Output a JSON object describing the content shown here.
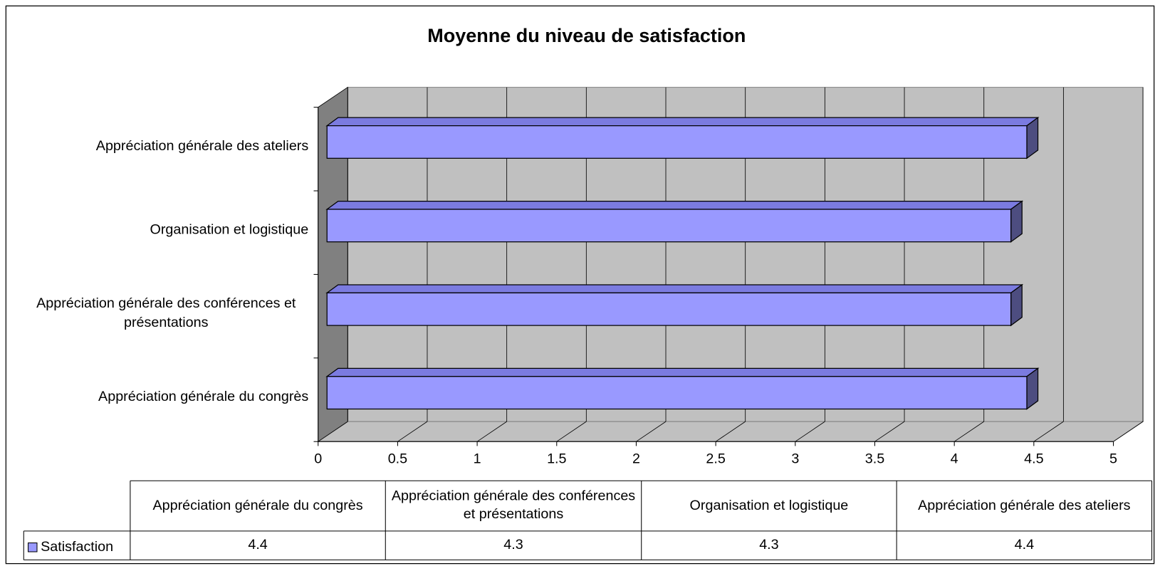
{
  "chart_data": {
    "type": "bar3d",
    "title": "Moyenne du niveau de satisfaction",
    "categories": [
      "Appréciation générale du congrès",
      "Appréciation générale des conférences et présentations",
      "Organisation et logistique",
      "Appréciation générale des ateliers"
    ],
    "series": [
      {
        "name": "Satisfaction",
        "color": "#9999ff",
        "values": [
          4.4,
          4.3,
          4.3,
          4.4
        ]
      }
    ],
    "xlim": [
      0,
      5
    ],
    "xticks": [
      0,
      0.5,
      1,
      1.5,
      2,
      2.5,
      3,
      3.5,
      4,
      4.5,
      5
    ],
    "grid": true,
    "data_table": true
  }
}
